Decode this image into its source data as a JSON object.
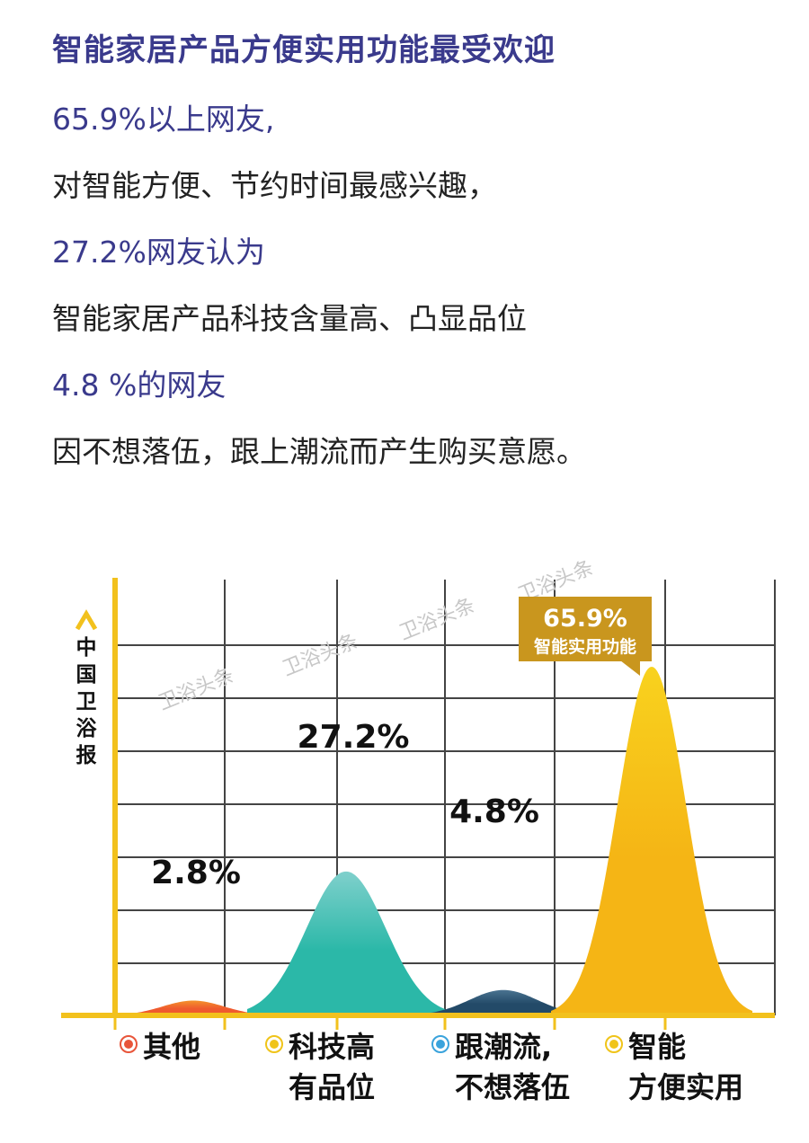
{
  "heading": "智能家居产品方便实用功能最受欢迎",
  "paragraph": [
    {
      "text": "65.9%以上网友,",
      "highlight": true
    },
    {
      "text": "对智能方便、节约时间最感兴趣，",
      "highlight": false
    },
    {
      "text": "27.2%网友认为",
      "highlight": true
    },
    {
      "text": "智能家居产品科技含量高、凸显品位",
      "highlight": false
    },
    {
      "text": "4.8 %的网友",
      "highlight": true
    },
    {
      "text": "因不想落伍，跟上潮流而产生购买意愿。",
      "highlight": false
    }
  ],
  "chart_data": {
    "type": "area",
    "ylabel": "中国卫浴报",
    "grid": true,
    "series": [
      {
        "name": "其他",
        "value": 2.8,
        "value_label": "2.8%",
        "color": "#ef5a2e",
        "color_top": "#f4922c",
        "legend_dot": "#e8553a",
        "category_lines": [
          "其他"
        ]
      },
      {
        "name": "科技高有品位",
        "value": 27.2,
        "value_label": "27.2%",
        "color": "#2bb8a8",
        "color_top": "#7fd0cc",
        "legend_dot": "#f0c419",
        "category_lines": [
          "科技高",
          "有品位"
        ]
      },
      {
        "name": "跟潮流,不想落伍",
        "value": 4.8,
        "value_label": "4.8%",
        "color": "#234a68",
        "color_top": "#4a7390",
        "legend_dot": "#3aa3dc",
        "category_lines": [
          "跟潮流,",
          "不想落伍"
        ]
      },
      {
        "name": "智能方便实用",
        "value": 65.9,
        "value_label": "65.9%",
        "color": "#f5b515",
        "color_top": "#f8d21e",
        "legend_dot": "#f0c419",
        "category_lines": [
          "智能",
          "方便实用"
        ]
      }
    ],
    "callout": {
      "value": "65.9%",
      "label": "智能实用功能",
      "bg": "#c9961e"
    },
    "watermark": "卫浴头条",
    "axis_color": "#f2c11d"
  }
}
